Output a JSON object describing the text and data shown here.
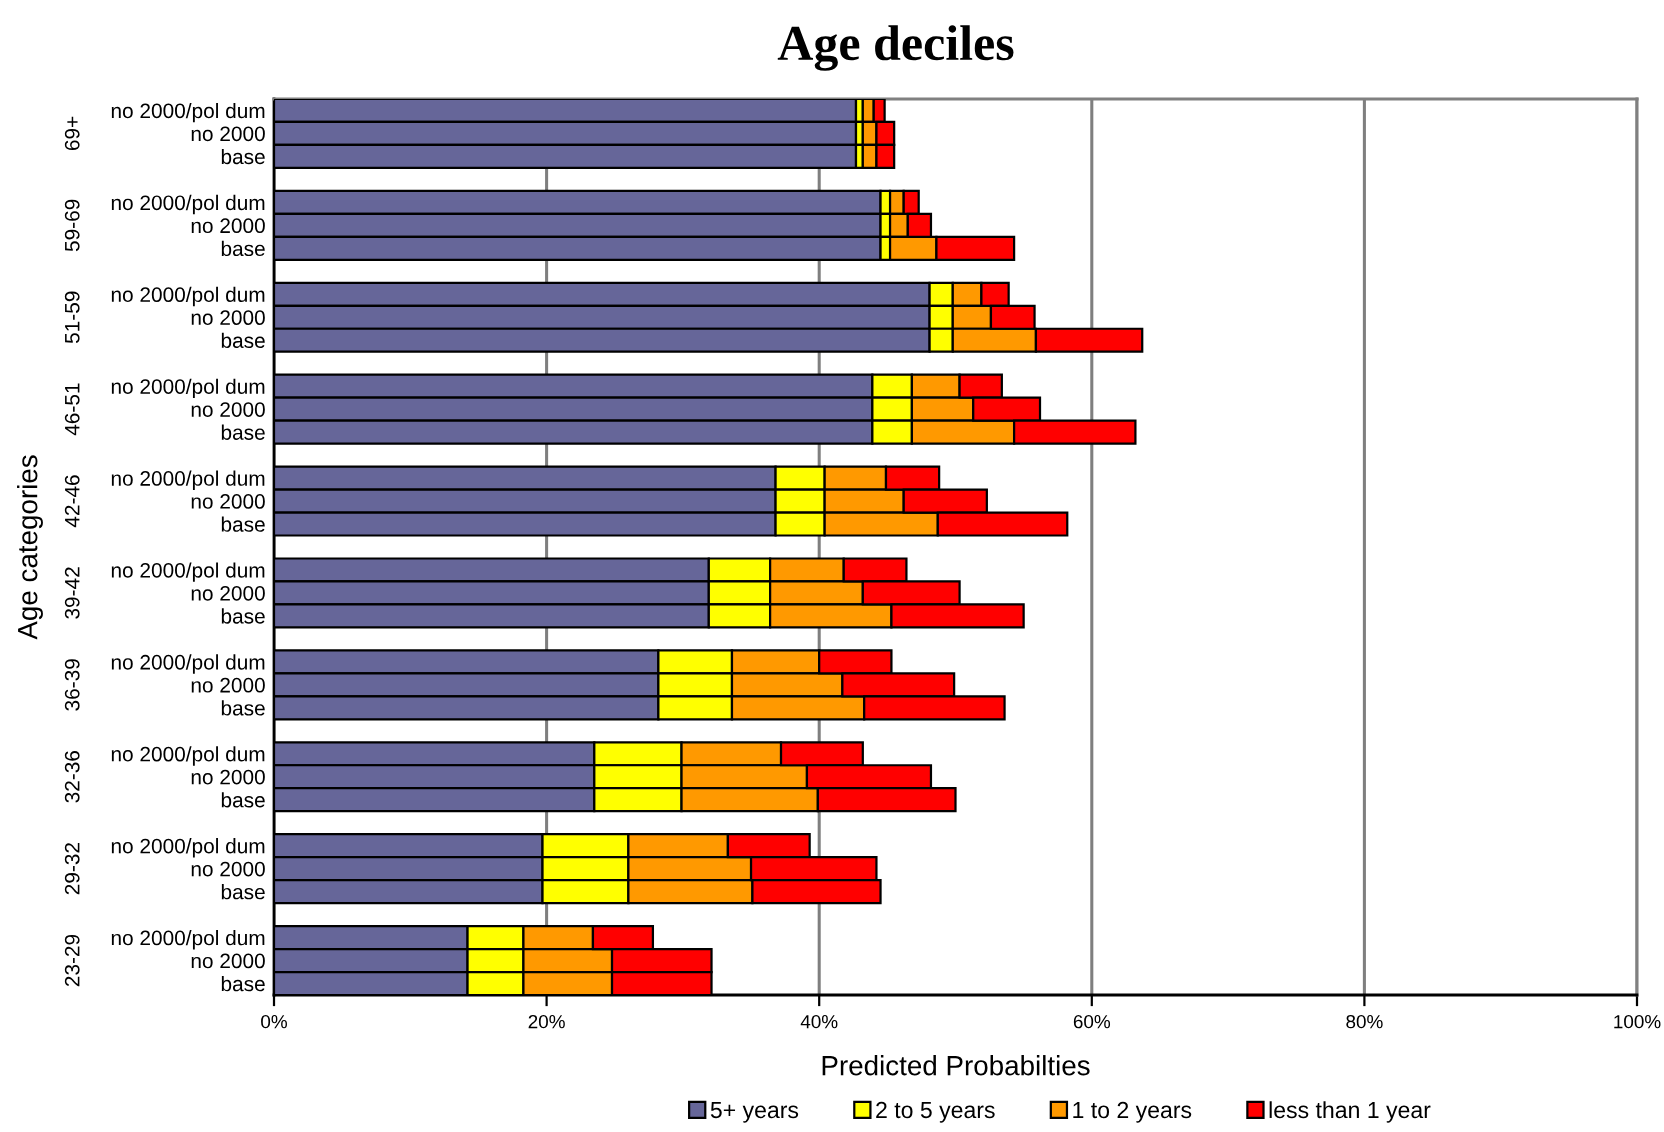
{
  "chart_data": {
    "type": "bar",
    "orientation": "horizontal",
    "stacked": true,
    "title": "Age deciles",
    "xlabel": "Predicted Probabilties",
    "ylabel": "Age categories",
    "categories": [
      "no 2000/pol dum",
      "no 2000",
      "base",
      null,
      "no 2000/pol dum",
      "no 2000",
      "base",
      null,
      "no 2000/pol dum",
      "no 2000",
      "base",
      null,
      "no 2000/pol dum",
      "no 2000",
      "base",
      null,
      "no 2000/pol dum",
      "no 2000",
      "base",
      null,
      "no 2000/pol dum",
      "no 2000",
      "base",
      null,
      "no 2000/pol dum",
      "no 2000",
      "base",
      null,
      "no 2000/pol dum",
      "no 2000",
      "base",
      null,
      "no 2000/pol dum",
      "no 2000",
      "base",
      null,
      "no 2000/pol dum",
      "no 2000",
      "base"
    ],
    "annotations": [
      "69+",
      "59-69",
      "51-59",
      "46-51",
      "42-46",
      "39-42",
      "36-39",
      "32-36",
      "29-32",
      "23-29"
    ],
    "series": [
      {
        "name": "5+ years",
        "color": "#666699",
        "values": [
          42.7,
          42.7,
          42.7,
          null,
          44.5,
          44.5,
          44.5,
          null,
          48.1,
          48.1,
          48.1,
          null,
          43.9,
          43.9,
          43.9,
          null,
          36.8,
          36.8,
          36.8,
          null,
          31.9,
          31.9,
          31.9,
          null,
          28.2,
          28.2,
          28.2,
          null,
          23.5,
          23.5,
          23.5,
          null,
          19.7,
          19.7,
          19.7,
          null,
          14.2,
          14.2,
          14.2
        ]
      },
      {
        "name": "2 to 5 years",
        "color": "#ffff00",
        "values": [
          0.5,
          0.5,
          0.5,
          null,
          0.7,
          0.7,
          0.7,
          null,
          1.7,
          1.7,
          1.7,
          null,
          2.9,
          2.9,
          2.9,
          null,
          3.6,
          3.6,
          3.6,
          null,
          4.5,
          4.5,
          4.5,
          null,
          5.4,
          5.4,
          5.4,
          null,
          6.4,
          6.4,
          6.4,
          null,
          6.3,
          6.3,
          6.3,
          null,
          4.1,
          4.1,
          4.1
        ]
      },
      {
        "name": "1 to 2 years",
        "color": "#ff9900",
        "values": [
          0.8,
          1.0,
          1.0,
          null,
          1.0,
          1.3,
          3.4,
          null,
          2.1,
          2.8,
          6.1,
          null,
          3.5,
          4.5,
          7.5,
          null,
          4.5,
          5.8,
          8.3,
          null,
          5.4,
          6.8,
          8.9,
          null,
          6.4,
          8.1,
          9.7,
          null,
          7.3,
          9.2,
          10.0,
          null,
          7.3,
          9.0,
          9.1,
          null,
          5.1,
          6.5,
          6.5
        ]
      },
      {
        "name": "less than 1 year",
        "color": "#ff0000",
        "values": [
          0.8,
          1.3,
          1.3,
          null,
          1.1,
          1.7,
          5.7,
          null,
          2.0,
          3.2,
          7.8,
          null,
          3.1,
          4.9,
          8.9,
          null,
          3.9,
          6.1,
          9.5,
          null,
          4.6,
          7.1,
          9.7,
          null,
          5.3,
          8.2,
          10.3,
          null,
          6.0,
          9.1,
          10.1,
          null,
          6.0,
          9.2,
          9.4,
          null,
          4.4,
          7.3,
          7.3
        ]
      }
    ],
    "xlim": [
      0,
      100
    ],
    "xticks": [
      {
        "value": 0,
        "label": "0%"
      },
      {
        "value": 20,
        "label": "20%"
      },
      {
        "value": 40,
        "label": "40%"
      },
      {
        "value": 60,
        "label": "60%"
      },
      {
        "value": 80,
        "label": "80%"
      },
      {
        "value": 100,
        "label": "100%"
      }
    ],
    "grid": "x",
    "legend": "bottom"
  }
}
